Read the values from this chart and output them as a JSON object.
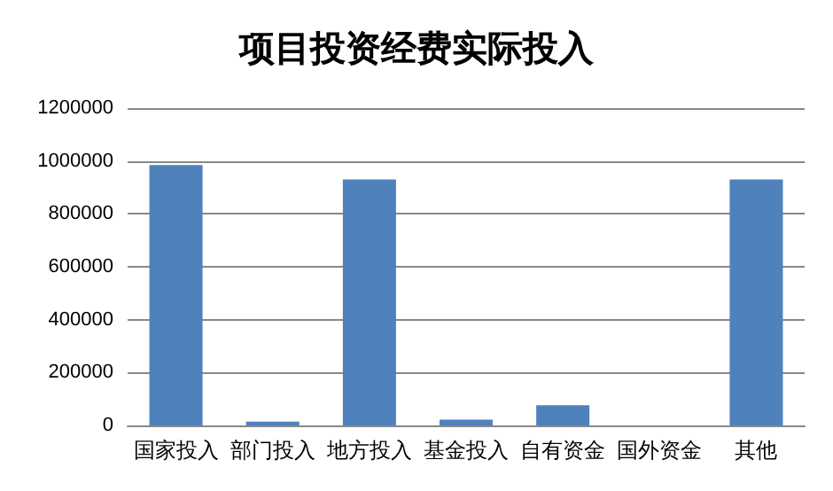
{
  "chart_data": {
    "type": "bar",
    "title": "项目投资经费实际投入",
    "categories": [
      "国家投入",
      "部门投入",
      "地方投入",
      "基金投入",
      "自有资金",
      "国外资金",
      "其他"
    ],
    "values": [
      985000,
      14000,
      930000,
      22000,
      76000,
      0,
      930000
    ],
    "color": "#4f81bd",
    "ylim": [
      0,
      1200000
    ],
    "yticks": [
      0,
      200000,
      400000,
      600000,
      800000,
      1000000,
      1200000
    ],
    "grid": "y"
  }
}
